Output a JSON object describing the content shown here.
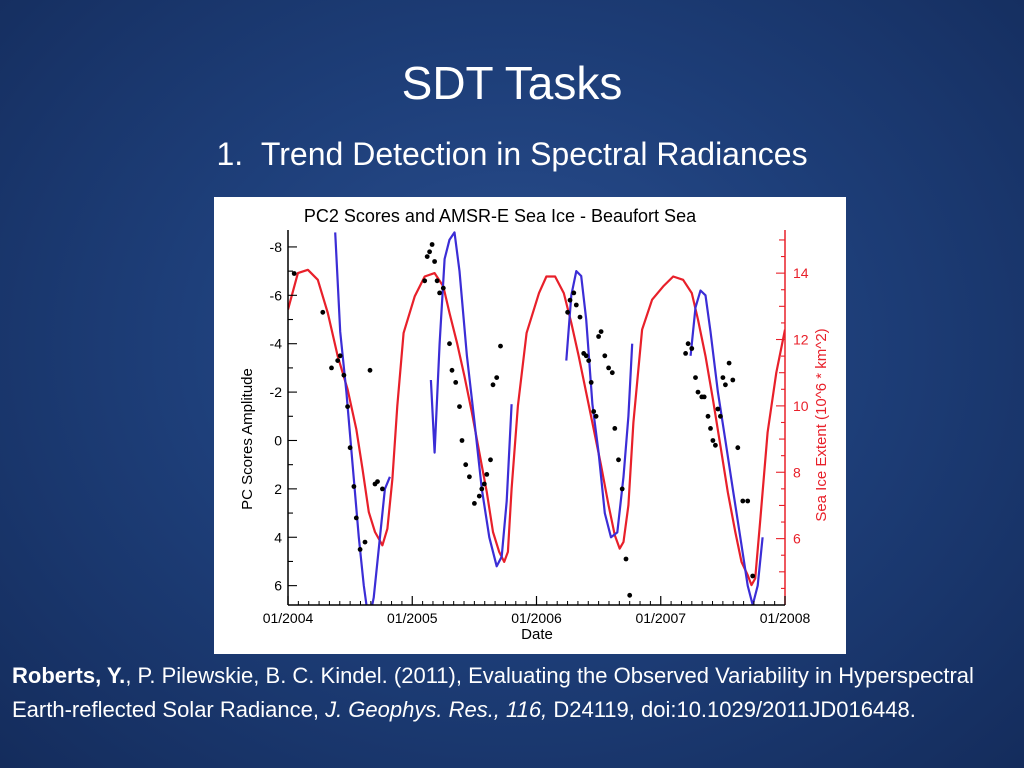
{
  "slide": {
    "title": "SDT Tasks",
    "subtitle_number": "1.",
    "subtitle_text": "Trend Detection in Spectral Radiances"
  },
  "citation": {
    "lead_author": "Roberts, Y.",
    "rest_authors": ", P. Pilewskie, B. C. Kindel. (2011), Evaluating the Observed Variability in Hyperspectral Earth-reflected Solar Radiance, ",
    "journal": "J. Geophys. Res., 116,",
    "article": " D24119, doi:10.1029/2011JD016448."
  },
  "chart_data": {
    "type": "line",
    "title": "PC2 Scores and AMSR-E Sea Ice - Beaufort Sea",
    "xlabel": "Date",
    "ylabel": "PC Scores Amplitude",
    "y2label": "Sea Ice Extent (10^6 * km^2)",
    "x_range": [
      2004.0,
      2008.0
    ],
    "x_ticks": [
      {
        "value": 2004.0,
        "label": "01/2004"
      },
      {
        "value": 2005.0,
        "label": "01/2005"
      },
      {
        "value": 2006.0,
        "label": "01/2006"
      },
      {
        "value": 2007.0,
        "label": "01/2007"
      },
      {
        "value": 2008.0,
        "label": "01/2008"
      }
    ],
    "y_range": [
      -8.7,
      6.8
    ],
    "y_reversed": true,
    "y_ticks": [
      -8,
      -6,
      -4,
      -2,
      0,
      2,
      4,
      6
    ],
    "y2_range": [
      4.0,
      15.3
    ],
    "y2_ticks": [
      6,
      8,
      10,
      12,
      14
    ],
    "grid": false,
    "colors": {
      "sea_ice": "#e8202a",
      "pc_fit": "#3b2dd6",
      "pc_points": "#000000",
      "axis_right": "#e8202a",
      "axis_left": "#000000"
    },
    "series": [
      {
        "name": "Sea Ice Extent",
        "axis": "right",
        "style": "line",
        "x": [
          2004.0,
          2004.08,
          2004.16,
          2004.24,
          2004.32,
          2004.4,
          2004.48,
          2004.55,
          2004.6,
          2004.65,
          2004.7,
          2004.73,
          2004.76,
          2004.8,
          2004.84,
          2004.88,
          2004.93,
          2005.02,
          2005.1,
          2005.18,
          2005.25,
          2005.3,
          2005.36,
          2005.42,
          2005.48,
          2005.54,
          2005.6,
          2005.65,
          2005.7,
          2005.74,
          2005.77,
          2005.8,
          2005.85,
          2005.92,
          2006.02,
          2006.08,
          2006.15,
          2006.22,
          2006.28,
          2006.34,
          2006.4,
          2006.46,
          2006.52,
          2006.58,
          2006.63,
          2006.67,
          2006.7,
          2006.74,
          2006.78,
          2006.85,
          2006.93,
          2007.02,
          2007.1,
          2007.18,
          2007.25,
          2007.3,
          2007.36,
          2007.42,
          2007.48,
          2007.54,
          2007.6,
          2007.65,
          2007.7,
          2007.73,
          2007.76,
          2007.8,
          2007.86,
          2007.93,
          2008.0
        ],
        "values": [
          12.9,
          14.0,
          14.1,
          13.8,
          12.8,
          11.5,
          10.5,
          9.3,
          8.1,
          6.8,
          6.2,
          6.0,
          5.8,
          6.3,
          7.8,
          10.0,
          12.2,
          13.3,
          13.9,
          14.0,
          13.6,
          12.8,
          11.9,
          10.9,
          9.8,
          8.6,
          7.4,
          6.2,
          5.6,
          5.3,
          5.6,
          7.5,
          10.0,
          12.2,
          13.4,
          13.9,
          13.9,
          13.4,
          12.5,
          11.5,
          10.4,
          9.3,
          8.2,
          7.0,
          6.1,
          5.7,
          5.9,
          7.0,
          9.5,
          12.3,
          13.2,
          13.6,
          13.9,
          13.8,
          13.4,
          12.6,
          11.5,
          10.2,
          8.8,
          7.4,
          6.2,
          5.3,
          4.9,
          4.6,
          4.8,
          6.5,
          9.2,
          11.0,
          12.3
        ]
      },
      {
        "name": "PC2 Fit",
        "axis": "left",
        "style": "line",
        "segments": [
          {
            "x": [
              2004.38,
              2004.42,
              2004.47,
              2004.52,
              2004.57,
              2004.61,
              2004.65,
              2004.69,
              2004.73,
              2004.78,
              2004.82
            ],
            "values": [
              -8.6,
              -4.5,
              -2.0,
              1.0,
              4.0,
              6.0,
              7.5,
              6.5,
              4.5,
              2.0,
              1.5
            ]
          },
          {
            "x": [
              2005.15,
              2005.18,
              2005.22,
              2005.26,
              2005.3,
              2005.34,
              2005.38,
              2005.44,
              2005.5,
              2005.56,
              2005.62,
              2005.68,
              2005.72,
              2005.76,
              2005.8
            ],
            "values": [
              -2.5,
              0.5,
              -4.0,
              -7.5,
              -8.3,
              -8.6,
              -7.0,
              -3.5,
              -0.8,
              2.0,
              4.0,
              5.2,
              4.8,
              2.5,
              -1.5
            ]
          },
          {
            "x": [
              2006.24,
              2006.28,
              2006.32,
              2006.36,
              2006.4,
              2006.45,
              2006.5,
              2006.55,
              2006.6,
              2006.65,
              2006.7,
              2006.74,
              2006.77
            ],
            "values": [
              -3.3,
              -6.0,
              -7.0,
              -6.8,
              -5.0,
              -1.5,
              0.5,
              3.0,
              4.0,
              3.8,
              1.5,
              -1.0,
              -4.0
            ]
          },
          {
            "x": [
              2007.24,
              2007.28,
              2007.32,
              2007.36,
              2007.4,
              2007.46,
              2007.52,
              2007.58,
              2007.64,
              2007.7,
              2007.74,
              2007.78,
              2007.82
            ],
            "values": [
              -3.5,
              -5.5,
              -6.2,
              -6.0,
              -4.5,
              -2.0,
              0.0,
              2.0,
              4.0,
              6.0,
              6.8,
              6.0,
              4.0
            ]
          }
        ]
      },
      {
        "name": "PC2 Scores",
        "axis": "left",
        "style": "points",
        "x": [
          2004.05,
          2004.28,
          2004.35,
          2004.4,
          2004.42,
          2004.45,
          2004.48,
          2004.5,
          2004.53,
          2004.55,
          2004.58,
          2004.62,
          2004.66,
          2004.7,
          2004.72,
          2004.76,
          2005.1,
          2005.12,
          2005.14,
          2005.16,
          2005.18,
          2005.2,
          2005.22,
          2005.25,
          2005.3,
          2005.32,
          2005.35,
          2005.38,
          2005.4,
          2005.43,
          2005.46,
          2005.5,
          2005.54,
          2005.56,
          2005.58,
          2005.6,
          2005.63,
          2005.65,
          2005.68,
          2005.71,
          2006.25,
          2006.27,
          2006.3,
          2006.32,
          2006.35,
          2006.38,
          2006.4,
          2006.42,
          2006.44,
          2006.46,
          2006.48,
          2006.5,
          2006.52,
          2006.55,
          2006.58,
          2006.61,
          2006.63,
          2006.66,
          2006.69,
          2006.72,
          2006.75,
          2007.2,
          2007.22,
          2007.25,
          2007.28,
          2007.3,
          2007.33,
          2007.35,
          2007.38,
          2007.4,
          2007.42,
          2007.44,
          2007.46,
          2007.48,
          2007.5,
          2007.52,
          2007.55,
          2007.58,
          2007.62,
          2007.66,
          2007.7,
          2007.74
        ],
        "values": [
          -6.9,
          -5.3,
          -3.0,
          -3.3,
          -3.5,
          -2.7,
          -1.4,
          0.3,
          1.9,
          3.2,
          4.5,
          4.2,
          -2.9,
          1.8,
          1.7,
          2.0,
          -6.6,
          -7.6,
          -7.8,
          -8.1,
          -7.4,
          -6.6,
          -6.1,
          -6.3,
          -4.0,
          -2.9,
          -2.4,
          -1.4,
          0.0,
          1.0,
          1.5,
          2.6,
          2.3,
          2.0,
          1.8,
          1.4,
          0.8,
          -2.3,
          -2.6,
          -3.9,
          -5.3,
          -5.8,
          -6.1,
          -5.6,
          -5.1,
          -3.6,
          -3.5,
          -3.3,
          -2.4,
          -1.2,
          -1.0,
          -4.3,
          -4.5,
          -3.5,
          -3.0,
          -2.8,
          -0.5,
          0.8,
          2.0,
          4.9,
          6.4,
          -3.6,
          -4.0,
          -3.8,
          -2.6,
          -2.0,
          -1.8,
          -1.8,
          -1.0,
          -0.5,
          0.0,
          0.2,
          -1.3,
          -1.0,
          -2.6,
          -2.3,
          -3.2,
          -2.5,
          0.3,
          2.5,
          2.5,
          5.6
        ]
      }
    ]
  }
}
